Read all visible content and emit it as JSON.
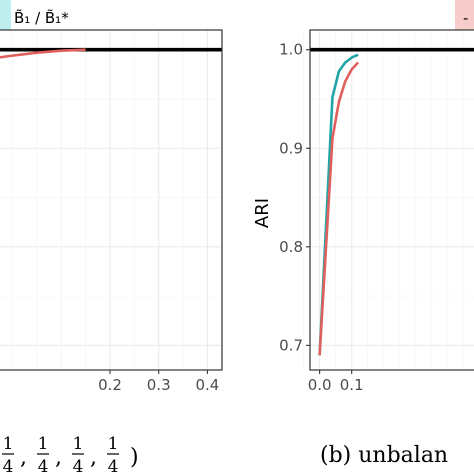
{
  "chart_data": [
    {
      "type": "line",
      "panel": "left (cropped)",
      "xlim": [
        -0.03,
        0.43
      ],
      "ylim": [
        0.675,
        1.02
      ],
      "x_ticks": [
        {
          "v": 0.2,
          "label": "0.2"
        },
        {
          "v": 0.3,
          "label": "0.3"
        },
        {
          "v": 0.4,
          "label": "0.4"
        }
      ],
      "y_ticks": [
        0.7,
        0.8,
        0.9,
        1.0
      ],
      "reference_line": 1.0,
      "grid": true,
      "series": [
        {
          "color": "#e0605e",
          "x": [
            -0.03,
            0.0,
            0.05,
            0.1,
            0.15
          ],
          "y": [
            0.992,
            0.994,
            0.997,
            0.999,
            1.0
          ]
        }
      ],
      "caption_fragment": {
        "fractions": [
          {
            "num": "1",
            "den": "4"
          },
          {
            "num": "1",
            "den": "4"
          },
          {
            "num": "1",
            "den": "4"
          },
          {
            "num": "1",
            "den": "4"
          }
        ],
        "separator": ",",
        "close_paren": ")"
      }
    },
    {
      "type": "line",
      "panel": "right (cropped)",
      "xlim": [
        -0.03,
        0.5
      ],
      "ylim": [
        0.675,
        1.02
      ],
      "ylabel": "ARI",
      "x_ticks": [
        {
          "v": 0.0,
          "label": "0.0"
        },
        {
          "v": 0.1,
          "label": "0.1"
        }
      ],
      "y_ticks": [
        {
          "v": 0.7,
          "label": "0.7"
        },
        {
          "v": 0.8,
          "label": "0.8"
        },
        {
          "v": 0.9,
          "label": "0.9"
        },
        {
          "v": 1.0,
          "label": "1.0"
        }
      ],
      "reference_line": 1.0,
      "grid": true,
      "series": [
        {
          "color": "#1ea6a6",
          "x": [
            0.0,
            0.04,
            0.06,
            0.08,
            0.1,
            0.12
          ],
          "y": [
            0.69,
            0.952,
            0.978,
            0.987,
            0.992,
            0.995
          ]
        },
        {
          "color": "#e0605e",
          "x": [
            0.0,
            0.04,
            0.06,
            0.08,
            0.1,
            0.12
          ],
          "y": [
            0.69,
            0.91,
            0.947,
            0.968,
            0.98,
            0.987
          ]
        }
      ],
      "caption": "(b) unbalan"
    }
  ],
  "legend": {
    "placement": "top",
    "entries": [
      {
        "label": "B̃₁ / B̃₁*",
        "color": "#1ea6a6",
        "key_fill": "#bfeeee"
      },
      {
        "label": "-",
        "color": "#e0605e",
        "key_fill": "#f9cccc"
      }
    ]
  },
  "colors": {
    "teal": "#1ea6a6",
    "red": "#e0605e",
    "reference": "#000000",
    "grid": "#ebebeb"
  }
}
